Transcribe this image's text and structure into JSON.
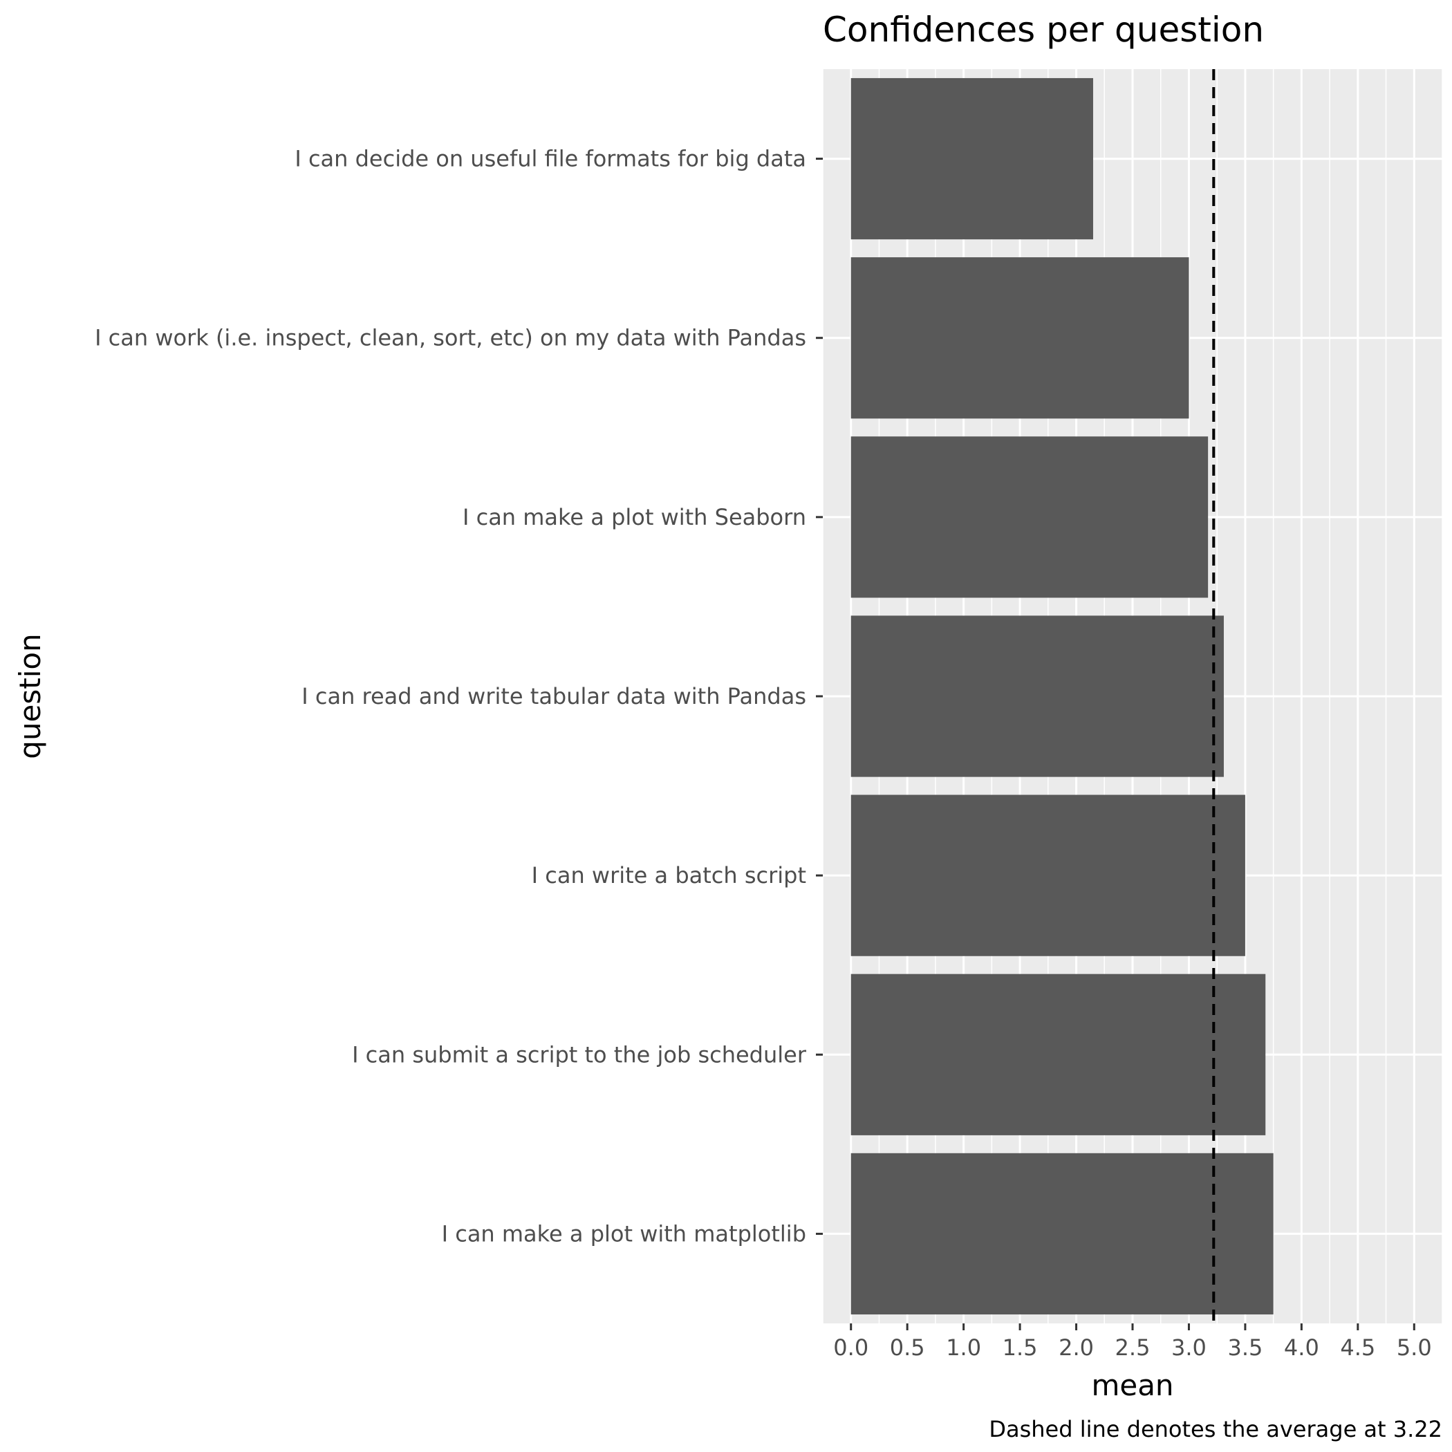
{
  "chart_data": {
    "type": "bar",
    "orientation": "horizontal",
    "title": "Confidences per question",
    "xlabel": "mean",
    "ylabel": "question",
    "caption": "Dashed line denotes the average at 3.22",
    "categories": [
      "I can decide on useful file formats for big data",
      "I can work (i.e. inspect, clean, sort, etc) on my data with Pandas",
      "I can make a plot with Seaborn",
      "I can read and write tabular data with Pandas",
      "I can write a batch script",
      "I can submit a script to the job scheduler",
      "I can make a plot with matplotlib"
    ],
    "values": [
      2.15,
      3.0,
      3.17,
      3.31,
      3.5,
      3.68,
      3.75
    ],
    "average_line": 3.22,
    "xlim": [
      -0.25,
      5.25
    ],
    "x_ticks": [
      "0.0",
      "0.5",
      "1.0",
      "1.5",
      "2.0",
      "2.5",
      "3.0",
      "3.5",
      "4.0",
      "4.5",
      "5.0"
    ],
    "grid": true,
    "legend": "none",
    "colors": {
      "bar": "#595959",
      "panel": "#ebebeb",
      "grid": "#ffffff",
      "average_line": "#000000"
    }
  }
}
